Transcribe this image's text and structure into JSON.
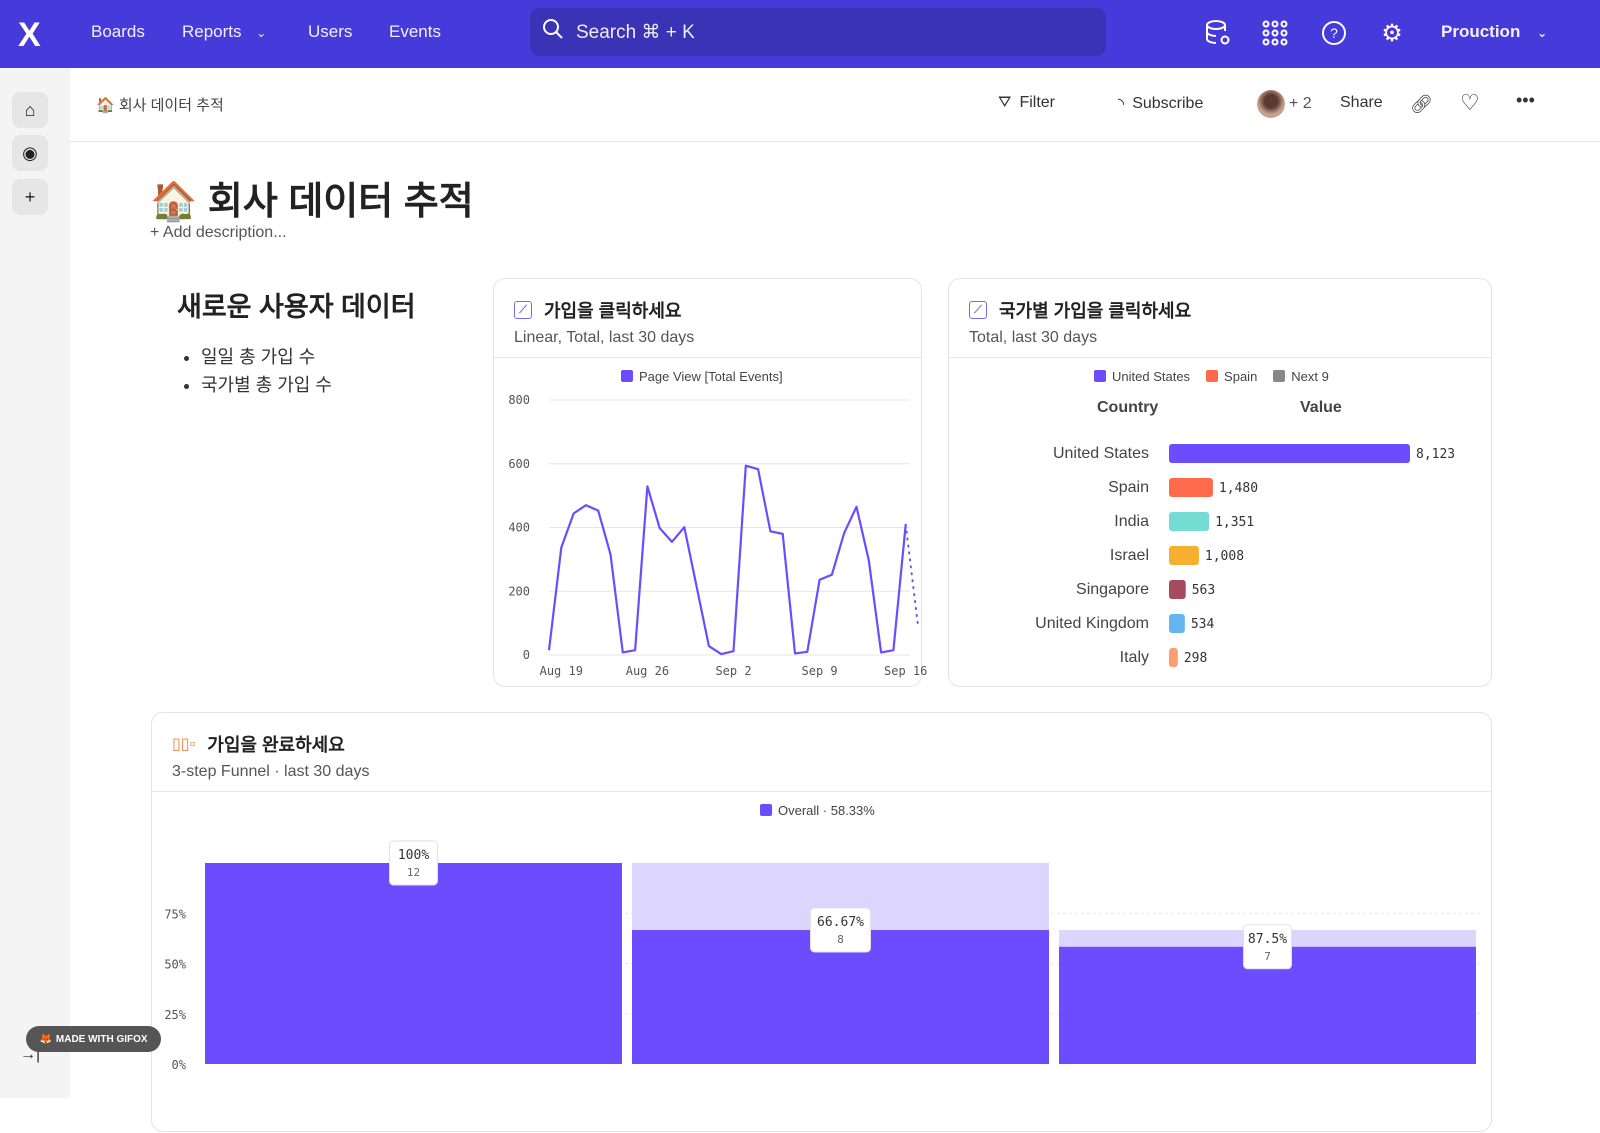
{
  "nav": {
    "logo": "X",
    "items": [
      "Boards",
      "Reports",
      "Users",
      "Events"
    ],
    "search": "Search  ⌘ + K",
    "workspace": "Prouction",
    "icons": [
      "data-settings-icon",
      "apps-grid-icon",
      "help-icon",
      "gear-icon"
    ]
  },
  "header": {
    "breadcrumb": "🏠 회사 데이터 추적",
    "filter": "Filter",
    "subscribe": "Subscribe",
    "avatar_extra": "+ 2",
    "share": "Share"
  },
  "page": {
    "title": "🏠 회사 데이터 추적",
    "description": "+ Add description..."
  },
  "text_card": {
    "heading": "새로운 사용자 데이터",
    "bullets": [
      "일일 총 가입 수",
      "국가별 총 가입 수"
    ]
  },
  "colors": {
    "brand": "#463adb",
    "accent": "#6b4cff"
  },
  "chart_data": [
    {
      "type": "line",
      "title": "가입을 클릭하세요",
      "subtitle": "Linear, Total, last 30 days",
      "legend": "Page View [Total Events]",
      "ylim": [
        0,
        800
      ],
      "yticks": [
        "0",
        "200",
        "400",
        "600",
        "800"
      ],
      "xticks": [
        "Aug 19",
        "Aug 26",
        "Sep 2",
        "Sep 9",
        "Sep 16"
      ],
      "x": [
        "Aug 18",
        "Aug 19",
        "Aug 20",
        "Aug 21",
        "Aug 22",
        "Aug 23",
        "Aug 24",
        "Aug 25",
        "Aug 26",
        "Aug 27",
        "Aug 28",
        "Aug 29",
        "Aug 30",
        "Aug 31",
        "Sep 1",
        "Sep 2",
        "Sep 3",
        "Sep 4",
        "Sep 5",
        "Sep 6",
        "Sep 7",
        "Sep 8",
        "Sep 9",
        "Sep 10",
        "Sep 11",
        "Sep 12",
        "Sep 13",
        "Sep 14",
        "Sep 15",
        "Sep 16"
      ],
      "values": [
        15,
        337,
        444,
        470,
        453,
        316,
        8,
        15,
        529,
        398,
        355,
        401,
        215,
        28,
        3,
        12,
        594,
        583,
        388,
        380,
        5,
        10,
        236,
        252,
        383,
        465,
        297,
        8,
        15,
        409
      ],
      "color": "#6b4cff"
    },
    {
      "type": "bar",
      "orientation": "horizontal",
      "title": "국가별 가입을 클릭하세요",
      "subtitle": "Total, last 30 days",
      "legend": [
        {
          "name": "United States",
          "color": "#6b4cff"
        },
        {
          "name": "Spain",
          "color": "#ff6a4c"
        },
        {
          "name": "Next 9",
          "color": "#888888"
        }
      ],
      "col_headers": [
        "Country",
        "Value"
      ],
      "categories": [
        "United States",
        "Spain",
        "India",
        "Israel",
        "Singapore",
        "United Kingdom",
        "Italy"
      ],
      "values": [
        8123,
        1480,
        1351,
        1008,
        563,
        534,
        298
      ],
      "labels": [
        "8,123",
        "1,480",
        "1,351",
        "1,008",
        "563",
        "534",
        "298"
      ],
      "colors": [
        "#6b4cff",
        "#ff6a4c",
        "#75dcd4",
        "#f5b030",
        "#a64a60",
        "#67b5f0",
        "#f9a06e"
      ]
    },
    {
      "type": "bar",
      "title": "가입을 완료하세요",
      "subtitle": "3-step Funnel · last 30 days",
      "legend": "Overall · 58.33%",
      "ylim": [
        0,
        100
      ],
      "yticks": [
        "0%",
        "25%",
        "50%",
        "75%"
      ],
      "steps": [
        {
          "overall": 100,
          "label": "100%",
          "count": "12"
        },
        {
          "overall": 66.67,
          "label": "66.67%",
          "count": "8"
        },
        {
          "overall": 58.33,
          "label": "87.5%",
          "count": "7"
        }
      ],
      "color": "#6b4cff"
    }
  ],
  "watermark": "MADE WITH GIFOX"
}
